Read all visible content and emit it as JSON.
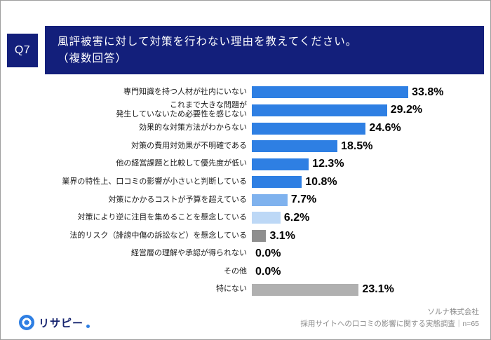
{
  "header": {
    "q_label": "Q7",
    "title_line1": "風評被害に対して対策を行わない理由を教えてください。",
    "title_line2": "（複数回答）"
  },
  "chart_data": {
    "type": "bar",
    "orientation": "horizontal",
    "title": "風評被害に対して対策を行わない理由（複数回答）",
    "categories": [
      "専門知識を持つ人材が社内にいない",
      "これまで大きな問題が\n発生していないため必要性を感じない",
      "効果的な対策方法がわからない",
      "対策の費用対効果が不明確である",
      "他の経営課題と比較して優先度が低い",
      "業界の特性上、口コミの影響が小さいと判断している",
      "対策にかかるコストが予算を超えている",
      "対策により逆に注目を集めることを懸念している",
      "法的リスク（誹謗中傷の訴訟など）を懸念している",
      "経営層の理解や承認が得られない",
      "その他",
      "特にない"
    ],
    "values": [
      33.8,
      29.2,
      24.6,
      18.5,
      12.3,
      10.8,
      7.7,
      6.2,
      3.1,
      0.0,
      0.0,
      23.1
    ],
    "value_labels": [
      "33.8%",
      "29.2%",
      "24.6%",
      "18.5%",
      "12.3%",
      "10.8%",
      "7.7%",
      "6.2%",
      "3.1%",
      "0.0%",
      "0.0%",
      "23.1%"
    ],
    "bar_colors": [
      "#2e7fe3",
      "#2e7fe3",
      "#2e7fe3",
      "#2e7fe3",
      "#2e7fe3",
      "#2e7fe3",
      "#7fb2ee",
      "#bdd8f6",
      "#8f8f8f",
      "#2e7fe3",
      "#2e7fe3",
      "#b0b0b0"
    ],
    "xlim": [
      0,
      35
    ],
    "grid": false,
    "legend": "none"
  },
  "footer": {
    "logo_text": "リサピー",
    "company": "ソルナ株式会社",
    "survey_note": "採用サイトへの口コミの影響に関する実態調査｜n=65"
  },
  "colors": {
    "header_navy": "#131f7b",
    "bar_blue": "#2e7fe3",
    "bar_blue_light": "#7fb2ee",
    "bar_blue_lighter": "#bdd8f6",
    "bar_gray_dark": "#8f8f8f",
    "bar_gray_light": "#b0b0b0",
    "logo_navy": "#16246f",
    "source_gray": "#8a8a8a"
  }
}
